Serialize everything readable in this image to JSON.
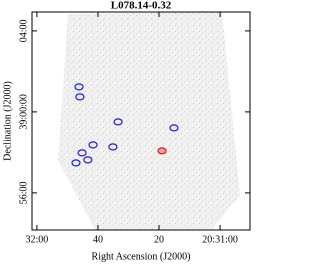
{
  "chart_data": {
    "type": "scatter",
    "title": "L078.14-0.32",
    "x_label": "Right Ascension (J2000)",
    "y_label": "Declination (J2000)",
    "xlim": [
      61.6,
      -9.8
    ],
    "ylim": [
      -350,
      296
    ],
    "xticks": [
      {
        "value": 60,
        "label": "32:00"
      },
      {
        "value": 40,
        "label": "40"
      },
      {
        "value": 20,
        "label": "20"
      },
      {
        "value": 0,
        "label": "20:31:00"
      }
    ],
    "yticks": [
      {
        "value": 240,
        "label": "04:00"
      },
      {
        "value": 0,
        "label": "39:00:00"
      },
      {
        "value": -240,
        "label": "56:00"
      }
    ],
    "series": [
      {
        "color": "#1f1fd0",
        "x": [
          46.2,
          45.9,
          33.4,
          15.1,
          41.6,
          35.1,
          45.2,
          43.3,
          47.2
        ],
        "values": [
          74.1,
          44.4,
          -29.6,
          -47.4,
          -97.8,
          -103.7,
          -121.5,
          -142.2,
          -151.1
        ]
      },
      {
        "color": "#d01f1f",
        "x": [
          19.0
        ],
        "values": [
          -115.6
        ]
      }
    ]
  }
}
